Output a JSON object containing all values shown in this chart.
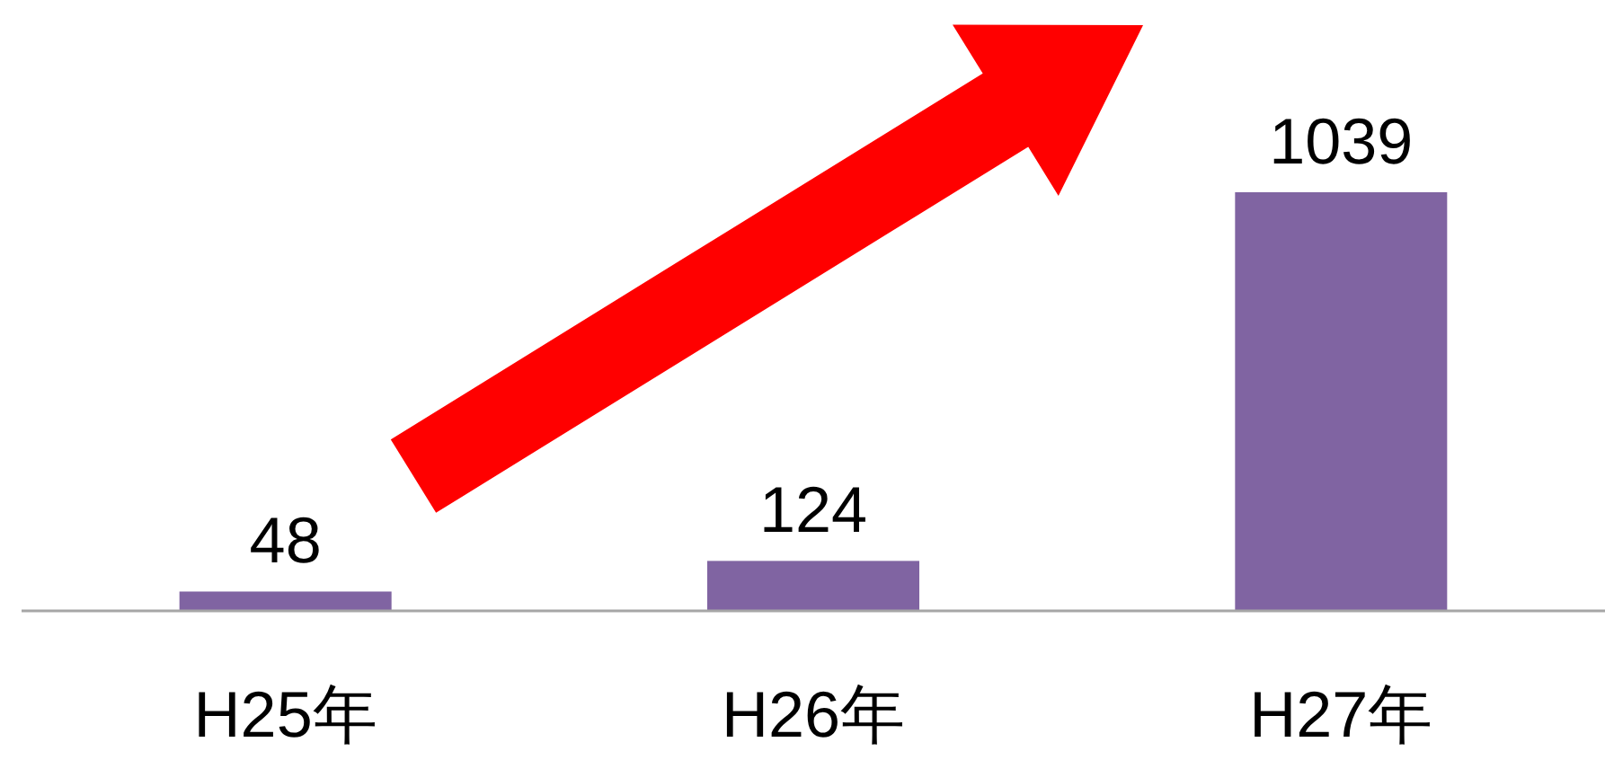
{
  "chart_data": {
    "type": "bar",
    "categories": [
      "H25年",
      "H26年",
      "H27年"
    ],
    "values": [
      48,
      124,
      1039
    ],
    "color": "#8064a2",
    "data_labels": true
  }
}
